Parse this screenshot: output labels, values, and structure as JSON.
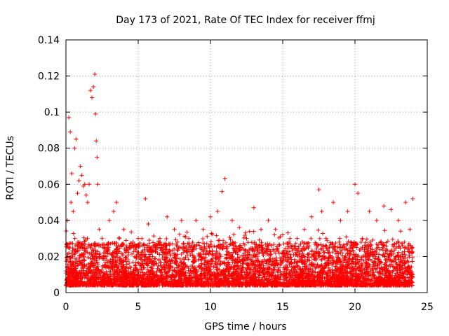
{
  "chart_data": {
    "type": "scatter",
    "title": "Day 173 of 2021, Rate Of TEC Index for receiver ffmj",
    "xlabel": "GPS time / hours",
    "ylabel": "ROTI / TECUs",
    "xlim": [
      0,
      25
    ],
    "ylim": [
      0,
      0.14
    ],
    "x_ticks": [
      0,
      5,
      10,
      15,
      20,
      25
    ],
    "y_ticks": [
      0,
      0.02,
      0.04,
      0.06,
      0.08,
      0.1,
      0.12,
      0.14
    ],
    "x_tick_labels": [
      "0",
      "5",
      "10",
      "15",
      "20",
      "25"
    ],
    "y_tick_labels": [
      "0",
      "0.02",
      "0.04",
      "0.06",
      "0.08",
      "0.1",
      "0.12",
      "0.14"
    ],
    "grid": true,
    "marker": "plus",
    "color": "#ff0000",
    "series": [
      {
        "name": "ROTI",
        "x": [
          0.1,
          0.2,
          0.3,
          0.35,
          0.4,
          0.5,
          0.6,
          0.7,
          0.8,
          0.9,
          1.0,
          1.1,
          1.2,
          1.3,
          1.4,
          1.5,
          1.6,
          1.7,
          1.8,
          1.9,
          2.0,
          2.05,
          2.1,
          2.15,
          2.2,
          2.3,
          2.5,
          2.7,
          3.0,
          3.3,
          3.5,
          3.7,
          4.0,
          4.5,
          5.0,
          5.5,
          5.7,
          6.0,
          6.5,
          7.0,
          7.5,
          8.0,
          8.5,
          9.0,
          9.5,
          10.0,
          10.5,
          10.8,
          11.0,
          11.5,
          12.0,
          12.5,
          13.0,
          13.5,
          14.0,
          14.5,
          15.0,
          15.5,
          16.0,
          16.5,
          17.0,
          17.5,
          17.7,
          18.0,
          18.5,
          19.0,
          19.5,
          20.0,
          20.2,
          20.5,
          21.0,
          21.5,
          22.0,
          22.5,
          23.0,
          23.5,
          23.8,
          24.0
        ],
        "y": [
          0.04,
          0.097,
          0.089,
          0.05,
          0.066,
          0.045,
          0.08,
          0.085,
          0.055,
          0.062,
          0.07,
          0.065,
          0.059,
          0.06,
          0.054,
          0.05,
          0.06,
          0.112,
          0.108,
          0.114,
          0.121,
          0.099,
          0.084,
          0.075,
          0.06,
          0.035,
          0.03,
          0.025,
          0.04,
          0.045,
          0.05,
          0.03,
          0.035,
          0.025,
          0.03,
          0.052,
          0.038,
          0.02,
          0.03,
          0.042,
          0.035,
          0.04,
          0.03,
          0.04,
          0.035,
          0.042,
          0.045,
          0.056,
          0.063,
          0.04,
          0.036,
          0.03,
          0.047,
          0.035,
          0.04,
          0.035,
          0.032,
          0.03,
          0.03,
          0.035,
          0.042,
          0.057,
          0.045,
          0.03,
          0.05,
          0.04,
          0.045,
          0.06,
          0.055,
          0.03,
          0.045,
          0.04,
          0.048,
          0.046,
          0.04,
          0.05,
          0.035,
          0.052
        ]
      }
    ]
  }
}
